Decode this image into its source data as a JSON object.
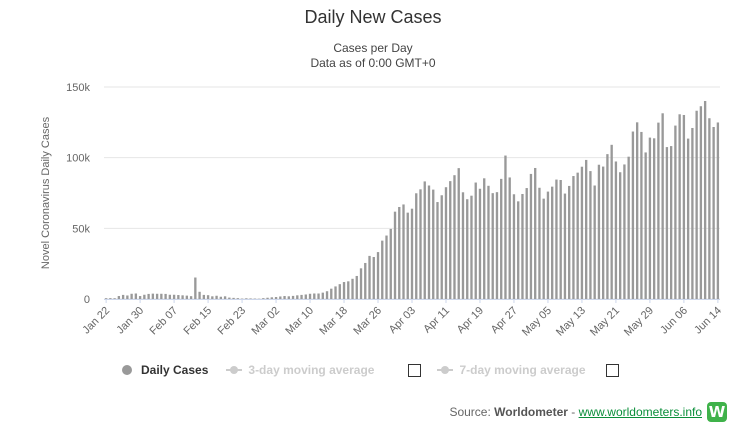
{
  "chart_data": {
    "type": "bar",
    "title": "Daily New Cases",
    "subtitle_lines": [
      "Cases per Day",
      "Data as of 0:00 GMT+0"
    ],
    "ylabel": "Novel Coronavirus Daily Cases",
    "ylim": [
      0,
      150000
    ],
    "yticks": [
      0,
      50000,
      100000,
      150000
    ],
    "ytick_labels": [
      "0",
      "50k",
      "100k",
      "150k"
    ],
    "xtick_labels": [
      "Jan 22",
      "Jan 30",
      "Feb 07",
      "Feb 15",
      "Feb 23",
      "Mar 02",
      "Mar 10",
      "Mar 18",
      "Mar 26",
      "Apr 03",
      "Apr 11",
      "Apr 19",
      "Apr 27",
      "May 05",
      "May 13",
      "May 21",
      "May 29",
      "Jun 06",
      "Jun 14"
    ],
    "grid": true,
    "bar_color": "#999999",
    "categories_note": "Jan 22 to Jun 15, one bar per day",
    "start_date": "Jan 22",
    "end_date": "Jun 15",
    "values": [
      0,
      0,
      0,
      0,
      0,
      0,
      0,
      0,
      0,
      0,
      0,
      0,
      0,
      0,
      0,
      0,
      0,
      0,
      0,
      0,
      0,
      0,
      0,
      0,
      0,
      0,
      0,
      0,
      0,
      0,
      0,
      0,
      0,
      0,
      0,
      0,
      0,
      0,
      0,
      0,
      0,
      0,
      0,
      0,
      0,
      0,
      0,
      0,
      0,
      0,
      0,
      0,
      0,
      0,
      0,
      0,
      0,
      0,
      0,
      0,
      0,
      0,
      0,
      0,
      0,
      0,
      0,
      0,
      0,
      0,
      0,
      0,
      0,
      0,
      0,
      0,
      0,
      0,
      0,
      0,
      0,
      0,
      0,
      0,
      0,
      0,
      0,
      0,
      0,
      0,
      0,
      0,
      0,
      0,
      0,
      0,
      0,
      0,
      0,
      0,
      0,
      0,
      0,
      0,
      0,
      0,
      0,
      0,
      0,
      0,
      0,
      0,
      0,
      0,
      0,
      0,
      0,
      0,
      0,
      0,
      0,
      0,
      0,
      0,
      0,
      0,
      0,
      0,
      0,
      0,
      0,
      0,
      0,
      0,
      0,
      0,
      0,
      0,
      0,
      0,
      0,
      0,
      0,
      0,
      0,
      0
    ]
  },
  "legend": {
    "daily_cases": "Daily Cases",
    "ma3": "3-day moving average",
    "ma7": "7-day moving average"
  },
  "source": {
    "prefix": "Source: ",
    "brand": "Worldometer",
    "separator": " - ",
    "link": "www.worldometers.info",
    "logo_letter": "W"
  }
}
